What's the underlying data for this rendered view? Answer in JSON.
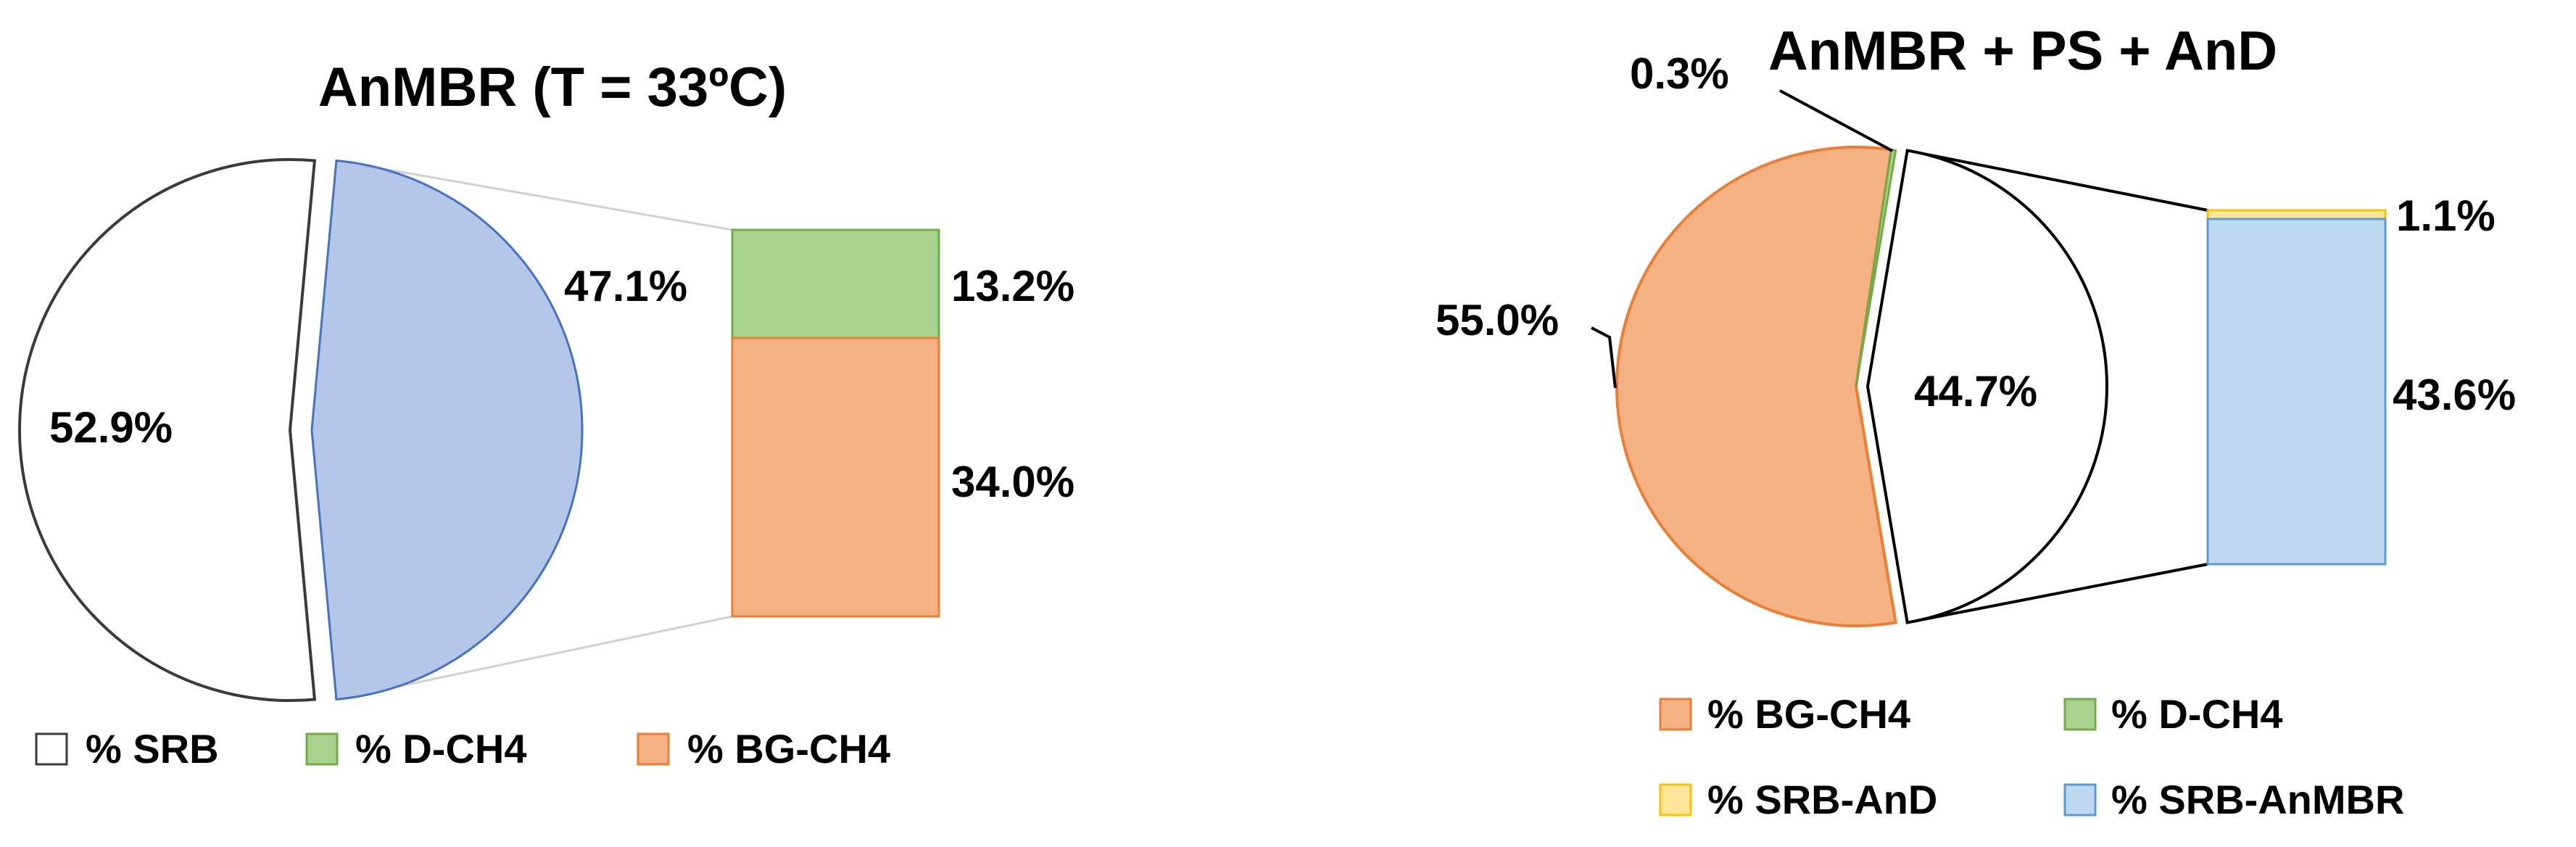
{
  "chart_data": [
    {
      "type": "pie",
      "title": "AnMBR (T = 33ºC)",
      "slices": [
        {
          "name": "% SRB",
          "value": 52.9,
          "label": "52.9%",
          "color": "#ffffff"
        },
        {
          "name": "",
          "value": 47.1,
          "label": "47.1%",
          "color": "#b4c7e7"
        }
      ],
      "breakdown": [
        {
          "name": "% D-CH4",
          "value": 13.2,
          "label": "13.2%",
          "color": "#a9d18e"
        },
        {
          "name": "% BG-CH4",
          "value": 34.0,
          "label": "34.0%",
          "color": "#f4b183"
        }
      ],
      "legend": [
        {
          "name": "% SRB",
          "color": "#ffffff"
        },
        {
          "name": "% D-CH4",
          "color": "#a9d18e"
        },
        {
          "name": "% BG-CH4",
          "color": "#f4b183"
        }
      ],
      "legend_position": "bottom"
    },
    {
      "type": "pie",
      "title": "AnMBR + PS + AnD",
      "slices": [
        {
          "name": "% BG-CH4",
          "value": 55.0,
          "label": "55.0%",
          "color": "#f4b183"
        },
        {
          "name": "% D-CH4",
          "value": 0.3,
          "label": "0.3%",
          "color": "#a9d18e"
        },
        {
          "name": "",
          "value": 44.7,
          "label": "44.7%",
          "color": "#ffffff"
        }
      ],
      "breakdown": [
        {
          "name": "% SRB-AnD",
          "value": 1.1,
          "label": "1.1%",
          "color": "#ffe699"
        },
        {
          "name": "% SRB-AnMBR",
          "value": 43.6,
          "label": "43.6%",
          "color": "#bdd7ee"
        }
      ],
      "legend": [
        {
          "name": "% BG-CH4",
          "color": "#f4b183"
        },
        {
          "name": "% D-CH4",
          "color": "#a9d18e"
        },
        {
          "name": "% SRB-AnD",
          "color": "#ffe699"
        },
        {
          "name": "% SRB-AnMBR",
          "color": "#bdd7ee"
        }
      ],
      "legend_position": "bottom"
    }
  ]
}
